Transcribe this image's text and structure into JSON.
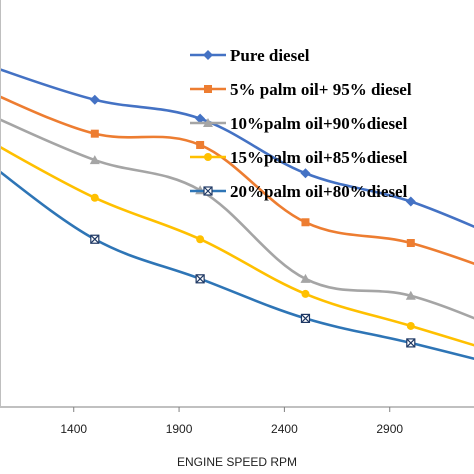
{
  "chart_data": {
    "type": "line",
    "xlabel": "ENGINE SPEED RPM",
    "ylabel": "",
    "x_ticks": [
      1400,
      1900,
      2400,
      2900
    ],
    "xlim": [
      1050,
      3300
    ],
    "ylim": [
      0,
      1
    ],
    "y_tick_labels_visible": false,
    "grid": false,
    "legend_position": "top-right",
    "x": [
      1000,
      1500,
      2000,
      2500,
      3000,
      3500
    ],
    "series": [
      {
        "name": "Pure diesel",
        "color": "#4472C4",
        "marker": "diamond",
        "values": [
          0.905,
          0.815,
          0.765,
          0.62,
          0.545,
          0.43
        ]
      },
      {
        "name": "5% palm oil+ 95% diesel",
        "color": "#ED7D31",
        "marker": "square",
        "values": [
          0.835,
          0.725,
          0.695,
          0.49,
          0.435,
          0.34
        ]
      },
      {
        "name": "10%palm oil+90%diesel",
        "color": "#A5A5A5",
        "marker": "triangle",
        "values": [
          0.775,
          0.655,
          0.575,
          0.34,
          0.295,
          0.19
        ]
      },
      {
        "name": "15%palm oil+85%diesel",
        "color": "#FFC000",
        "marker": "circle",
        "values": [
          0.705,
          0.555,
          0.445,
          0.3,
          0.215,
          0.13
        ]
      },
      {
        "name": "20%palm oil+80%diesel",
        "color": "#2E75B6",
        "marker": "x-square",
        "values": [
          0.645,
          0.445,
          0.34,
          0.235,
          0.17,
          0.1
        ]
      }
    ]
  }
}
